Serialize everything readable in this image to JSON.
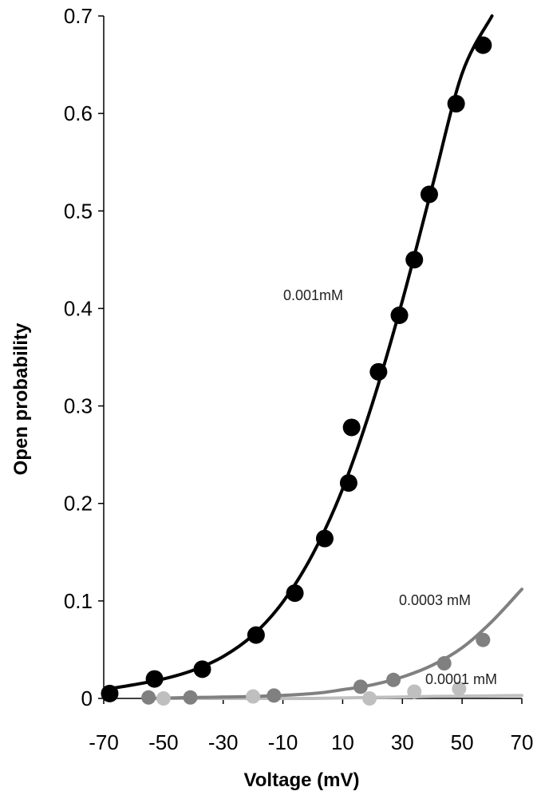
{
  "chart_data": {
    "type": "scatter",
    "title": "",
    "xlabel": "Voltage (mV)",
    "ylabel": "Open probability",
    "xlim": [
      -70,
      70
    ],
    "ylim": [
      0,
      0.7
    ],
    "x_ticks": [
      "-70",
      "-50",
      "-30",
      "-10",
      "10",
      "30",
      "50",
      "70"
    ],
    "y_ticks": [
      "0",
      "0.1",
      "0.2",
      "0.3",
      "0.4",
      "0.5",
      "0.6",
      "0.7"
    ],
    "grid": false,
    "legend": "none",
    "series": [
      {
        "name": "0.001mM",
        "color": "#000000",
        "points": [
          [
            -68,
            0.005
          ],
          [
            -53,
            0.02
          ],
          [
            -37,
            0.03
          ],
          [
            -19,
            0.065
          ],
          [
            -6,
            0.108
          ],
          [
            4,
            0.164
          ],
          [
            12,
            0.221
          ],
          [
            13,
            0.278
          ],
          [
            22,
            0.335
          ],
          [
            29,
            0.393
          ],
          [
            34,
            0.45
          ],
          [
            39,
            0.517
          ],
          [
            48,
            0.61
          ],
          [
            57,
            0.67
          ]
        ],
        "fit": [
          [
            -68,
            0.01
          ],
          [
            -60,
            0.014
          ],
          [
            -50,
            0.02
          ],
          [
            -40,
            0.029
          ],
          [
            -30,
            0.043
          ],
          [
            -20,
            0.065
          ],
          [
            -10,
            0.099
          ],
          [
            0,
            0.148
          ],
          [
            10,
            0.215
          ],
          [
            20,
            0.303
          ],
          [
            30,
            0.408
          ],
          [
            40,
            0.525
          ],
          [
            50,
            0.641
          ],
          [
            60,
            0.7
          ]
        ]
      },
      {
        "name": "0.0003 mM",
        "color": "#808080",
        "points": [
          [
            -55,
            0.001
          ],
          [
            -41,
            0.001
          ],
          [
            -13,
            0.003
          ],
          [
            16,
            0.012
          ],
          [
            27,
            0.019
          ],
          [
            44,
            0.036
          ],
          [
            57,
            0.06
          ]
        ],
        "fit": [
          [
            -55,
            0.0
          ],
          [
            -40,
            0.001
          ],
          [
            -20,
            0.002
          ],
          [
            0,
            0.005
          ],
          [
            10,
            0.009
          ],
          [
            20,
            0.014
          ],
          [
            30,
            0.022
          ],
          [
            40,
            0.034
          ],
          [
            50,
            0.052
          ],
          [
            60,
            0.079
          ],
          [
            70,
            0.112
          ]
        ]
      },
      {
        "name": "0.0001 mM",
        "color": "#bfbfbf",
        "points": [
          [
            -50,
            0.0
          ],
          [
            -20,
            0.002
          ],
          [
            19,
            0.0
          ],
          [
            34,
            0.007
          ],
          [
            49,
            0.01
          ]
        ],
        "fit": [
          [
            -52,
            0.0
          ],
          [
            -20,
            0.0
          ],
          [
            0,
            0.0
          ],
          [
            20,
            0.001
          ],
          [
            40,
            0.002
          ],
          [
            55,
            0.0025
          ],
          [
            70,
            0.003
          ]
        ]
      }
    ]
  }
}
